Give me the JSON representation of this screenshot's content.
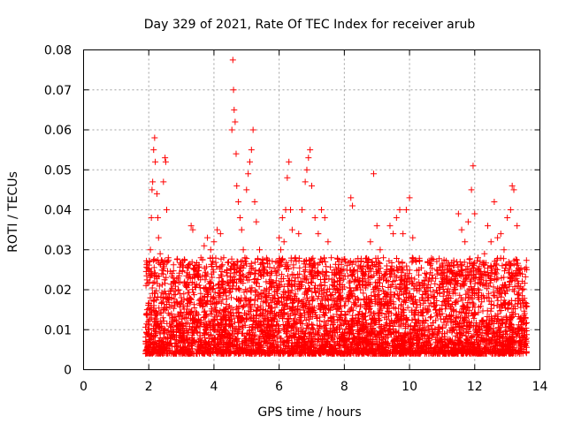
{
  "chart_data": {
    "type": "scatter",
    "title": "Day 329 of 2021, Rate Of TEC Index for receiver arub",
    "xlabel": "GPS time / hours",
    "ylabel": "ROTI / TECUs",
    "xlim": [
      0,
      14
    ],
    "ylim": [
      0,
      0.08
    ],
    "xticks": [
      "0",
      "2",
      "4",
      "6",
      "8",
      "10",
      "12",
      "14"
    ],
    "yticks": [
      "0",
      "0.01",
      "0.02",
      "0.03",
      "0.04",
      "0.05",
      "0.06",
      "0.07",
      "0.08"
    ],
    "grid": true,
    "marker": "plus",
    "color": "#ff0000",
    "series": [
      {
        "points": [
          [
            1.95,
            0.015
          ],
          [
            2.0,
            0.024
          ],
          [
            2.02,
            0.027
          ],
          [
            2.05,
            0.03
          ],
          [
            2.08,
            0.038
          ],
          [
            2.1,
            0.045
          ],
          [
            2.12,
            0.047
          ],
          [
            2.15,
            0.055
          ],
          [
            2.18,
            0.058
          ],
          [
            2.2,
            0.052
          ],
          [
            2.25,
            0.044
          ],
          [
            2.28,
            0.038
          ],
          [
            2.3,
            0.033
          ],
          [
            2.35,
            0.029
          ],
          [
            2.4,
            0.024
          ],
          [
            2.45,
            0.047
          ],
          [
            2.5,
            0.053
          ],
          [
            2.52,
            0.052
          ],
          [
            2.55,
            0.04
          ],
          [
            2.6,
            0.028
          ],
          [
            2.7,
            0.02
          ],
          [
            2.8,
            0.016
          ],
          [
            2.9,
            0.02
          ],
          [
            3.0,
            0.018
          ],
          [
            3.1,
            0.022
          ],
          [
            3.2,
            0.026
          ],
          [
            3.3,
            0.036
          ],
          [
            3.35,
            0.035
          ],
          [
            3.5,
            0.024
          ],
          [
            3.6,
            0.028
          ],
          [
            3.7,
            0.031
          ],
          [
            3.8,
            0.033
          ],
          [
            3.9,
            0.03
          ],
          [
            4.0,
            0.032
          ],
          [
            4.1,
            0.035
          ],
          [
            4.2,
            0.034
          ],
          [
            4.3,
            0.028
          ],
          [
            4.4,
            0.025
          ],
          [
            4.5,
            0.022
          ],
          [
            4.55,
            0.06
          ],
          [
            4.58,
            0.0775
          ],
          [
            4.6,
            0.07
          ],
          [
            4.62,
            0.065
          ],
          [
            4.65,
            0.062
          ],
          [
            4.68,
            0.054
          ],
          [
            4.7,
            0.046
          ],
          [
            4.75,
            0.042
          ],
          [
            4.8,
            0.038
          ],
          [
            4.85,
            0.035
          ],
          [
            4.9,
            0.03
          ],
          [
            4.95,
            0.028
          ],
          [
            5.0,
            0.045
          ],
          [
            5.05,
            0.049
          ],
          [
            5.1,
            0.052
          ],
          [
            5.15,
            0.055
          ],
          [
            5.2,
            0.06
          ],
          [
            5.25,
            0.042
          ],
          [
            5.3,
            0.037
          ],
          [
            5.4,
            0.03
          ],
          [
            5.5,
            0.025
          ],
          [
            5.6,
            0.022
          ],
          [
            5.7,
            0.02
          ],
          [
            5.8,
            0.018
          ],
          [
            5.9,
            0.027
          ],
          [
            6.0,
            0.033
          ],
          [
            6.05,
            0.03
          ],
          [
            6.1,
            0.038
          ],
          [
            6.15,
            0.032
          ],
          [
            6.2,
            0.04
          ],
          [
            6.25,
            0.048
          ],
          [
            6.3,
            0.052
          ],
          [
            6.35,
            0.04
          ],
          [
            6.4,
            0.035
          ],
          [
            6.5,
            0.028
          ],
          [
            6.6,
            0.034
          ],
          [
            6.7,
            0.04
          ],
          [
            6.8,
            0.047
          ],
          [
            6.85,
            0.05
          ],
          [
            6.9,
            0.053
          ],
          [
            6.95,
            0.055
          ],
          [
            7.0,
            0.046
          ],
          [
            7.1,
            0.038
          ],
          [
            7.2,
            0.034
          ],
          [
            7.3,
            0.04
          ],
          [
            7.4,
            0.038
          ],
          [
            7.5,
            0.032
          ],
          [
            7.6,
            0.028
          ],
          [
            7.7,
            0.024
          ],
          [
            7.8,
            0.02
          ],
          [
            7.9,
            0.018
          ],
          [
            8.0,
            0.016
          ],
          [
            8.1,
            0.018
          ],
          [
            8.2,
            0.043
          ],
          [
            8.25,
            0.041
          ],
          [
            8.3,
            0.022
          ],
          [
            8.5,
            0.02
          ],
          [
            8.6,
            0.024
          ],
          [
            8.7,
            0.027
          ],
          [
            8.8,
            0.032
          ],
          [
            8.9,
            0.049
          ],
          [
            9.0,
            0.036
          ],
          [
            9.1,
            0.03
          ],
          [
            9.2,
            0.028
          ],
          [
            9.3,
            0.025
          ],
          [
            9.4,
            0.036
          ],
          [
            9.5,
            0.034
          ],
          [
            9.6,
            0.038
          ],
          [
            9.7,
            0.04
          ],
          [
            9.8,
            0.034
          ],
          [
            9.9,
            0.04
          ],
          [
            10.0,
            0.043
          ],
          [
            10.1,
            0.033
          ],
          [
            10.2,
            0.027
          ],
          [
            10.3,
            0.021
          ],
          [
            10.4,
            0.018
          ],
          [
            10.6,
            0.016
          ],
          [
            10.8,
            0.015
          ],
          [
            11.0,
            0.014
          ],
          [
            11.2,
            0.018
          ],
          [
            11.4,
            0.02
          ],
          [
            11.5,
            0.039
          ],
          [
            11.6,
            0.035
          ],
          [
            11.7,
            0.032
          ],
          [
            11.8,
            0.037
          ],
          [
            11.9,
            0.045
          ],
          [
            11.95,
            0.051
          ],
          [
            12.0,
            0.039
          ],
          [
            12.1,
            0.028
          ],
          [
            12.2,
            0.024
          ],
          [
            12.3,
            0.029
          ],
          [
            12.4,
            0.036
          ],
          [
            12.5,
            0.032
          ],
          [
            12.6,
            0.042
          ],
          [
            12.7,
            0.033
          ],
          [
            12.8,
            0.034
          ],
          [
            12.9,
            0.03
          ],
          [
            13.0,
            0.038
          ],
          [
            13.1,
            0.04
          ],
          [
            13.15,
            0.046
          ],
          [
            13.2,
            0.045
          ],
          [
            13.3,
            0.036
          ],
          [
            13.4,
            0.024
          ],
          [
            13.5,
            0.016
          ]
        ]
      }
    ]
  }
}
